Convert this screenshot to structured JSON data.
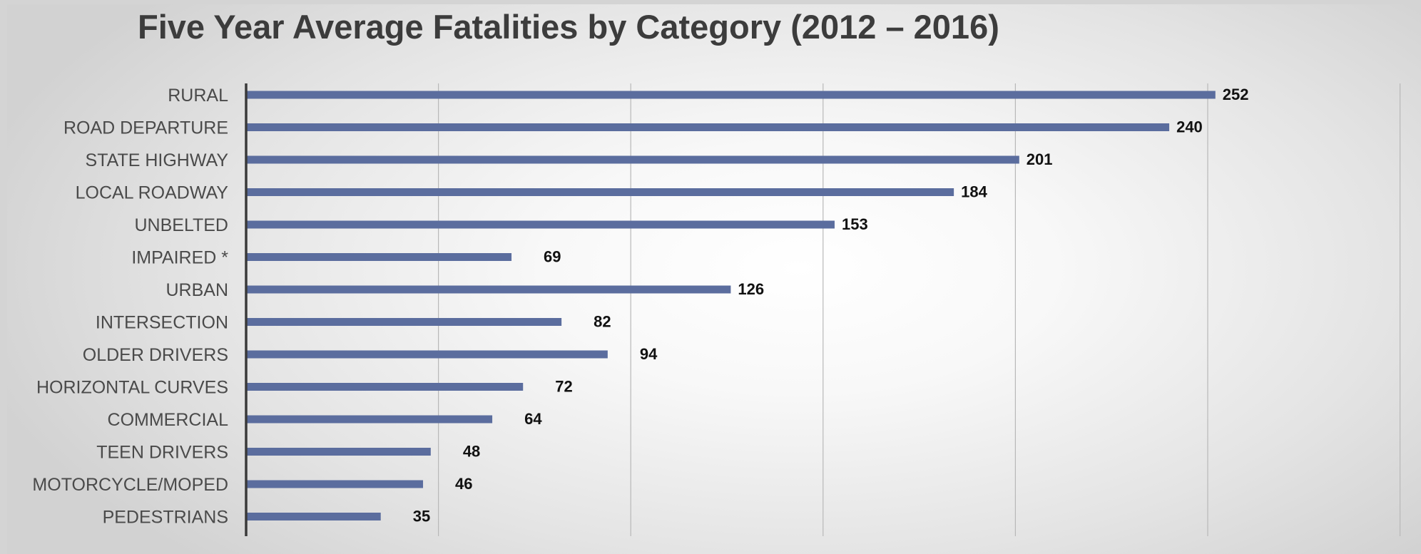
{
  "chart_data": {
    "type": "bar",
    "orientation": "horizontal",
    "title": "Five Year Average Fatalities by Category (2012 – 2016)",
    "xlabel": "",
    "ylabel": "",
    "xlim": [
      0,
      300
    ],
    "grid": true,
    "legend": "none",
    "categories": [
      "RURAL",
      "ROAD DEPARTURE",
      "STATE HIGHWAY",
      "LOCAL ROADWAY",
      "UNBELTED",
      "IMPAIRED *",
      "URBAN",
      "INTERSECTION",
      "OLDER DRIVERS",
      "HORIZONTAL CURVES",
      "COMMERCIAL",
      "TEEN DRIVERS",
      "MOTORCYCLE/MOPED",
      "PEDESTRIANS"
    ],
    "values": [
      252,
      240,
      201,
      184,
      153,
      69,
      126,
      82,
      94,
      72,
      64,
      48,
      46,
      35
    ],
    "value_labels": [
      "252",
      "240",
      "201",
      "184",
      "153",
      "69",
      "126",
      "82",
      "94",
      "72",
      "64",
      "48",
      "46",
      "35"
    ],
    "colors": {
      "bar": "#5b6d9e",
      "grid": "#b8b8b8",
      "axis": "#3a3a3a"
    }
  }
}
